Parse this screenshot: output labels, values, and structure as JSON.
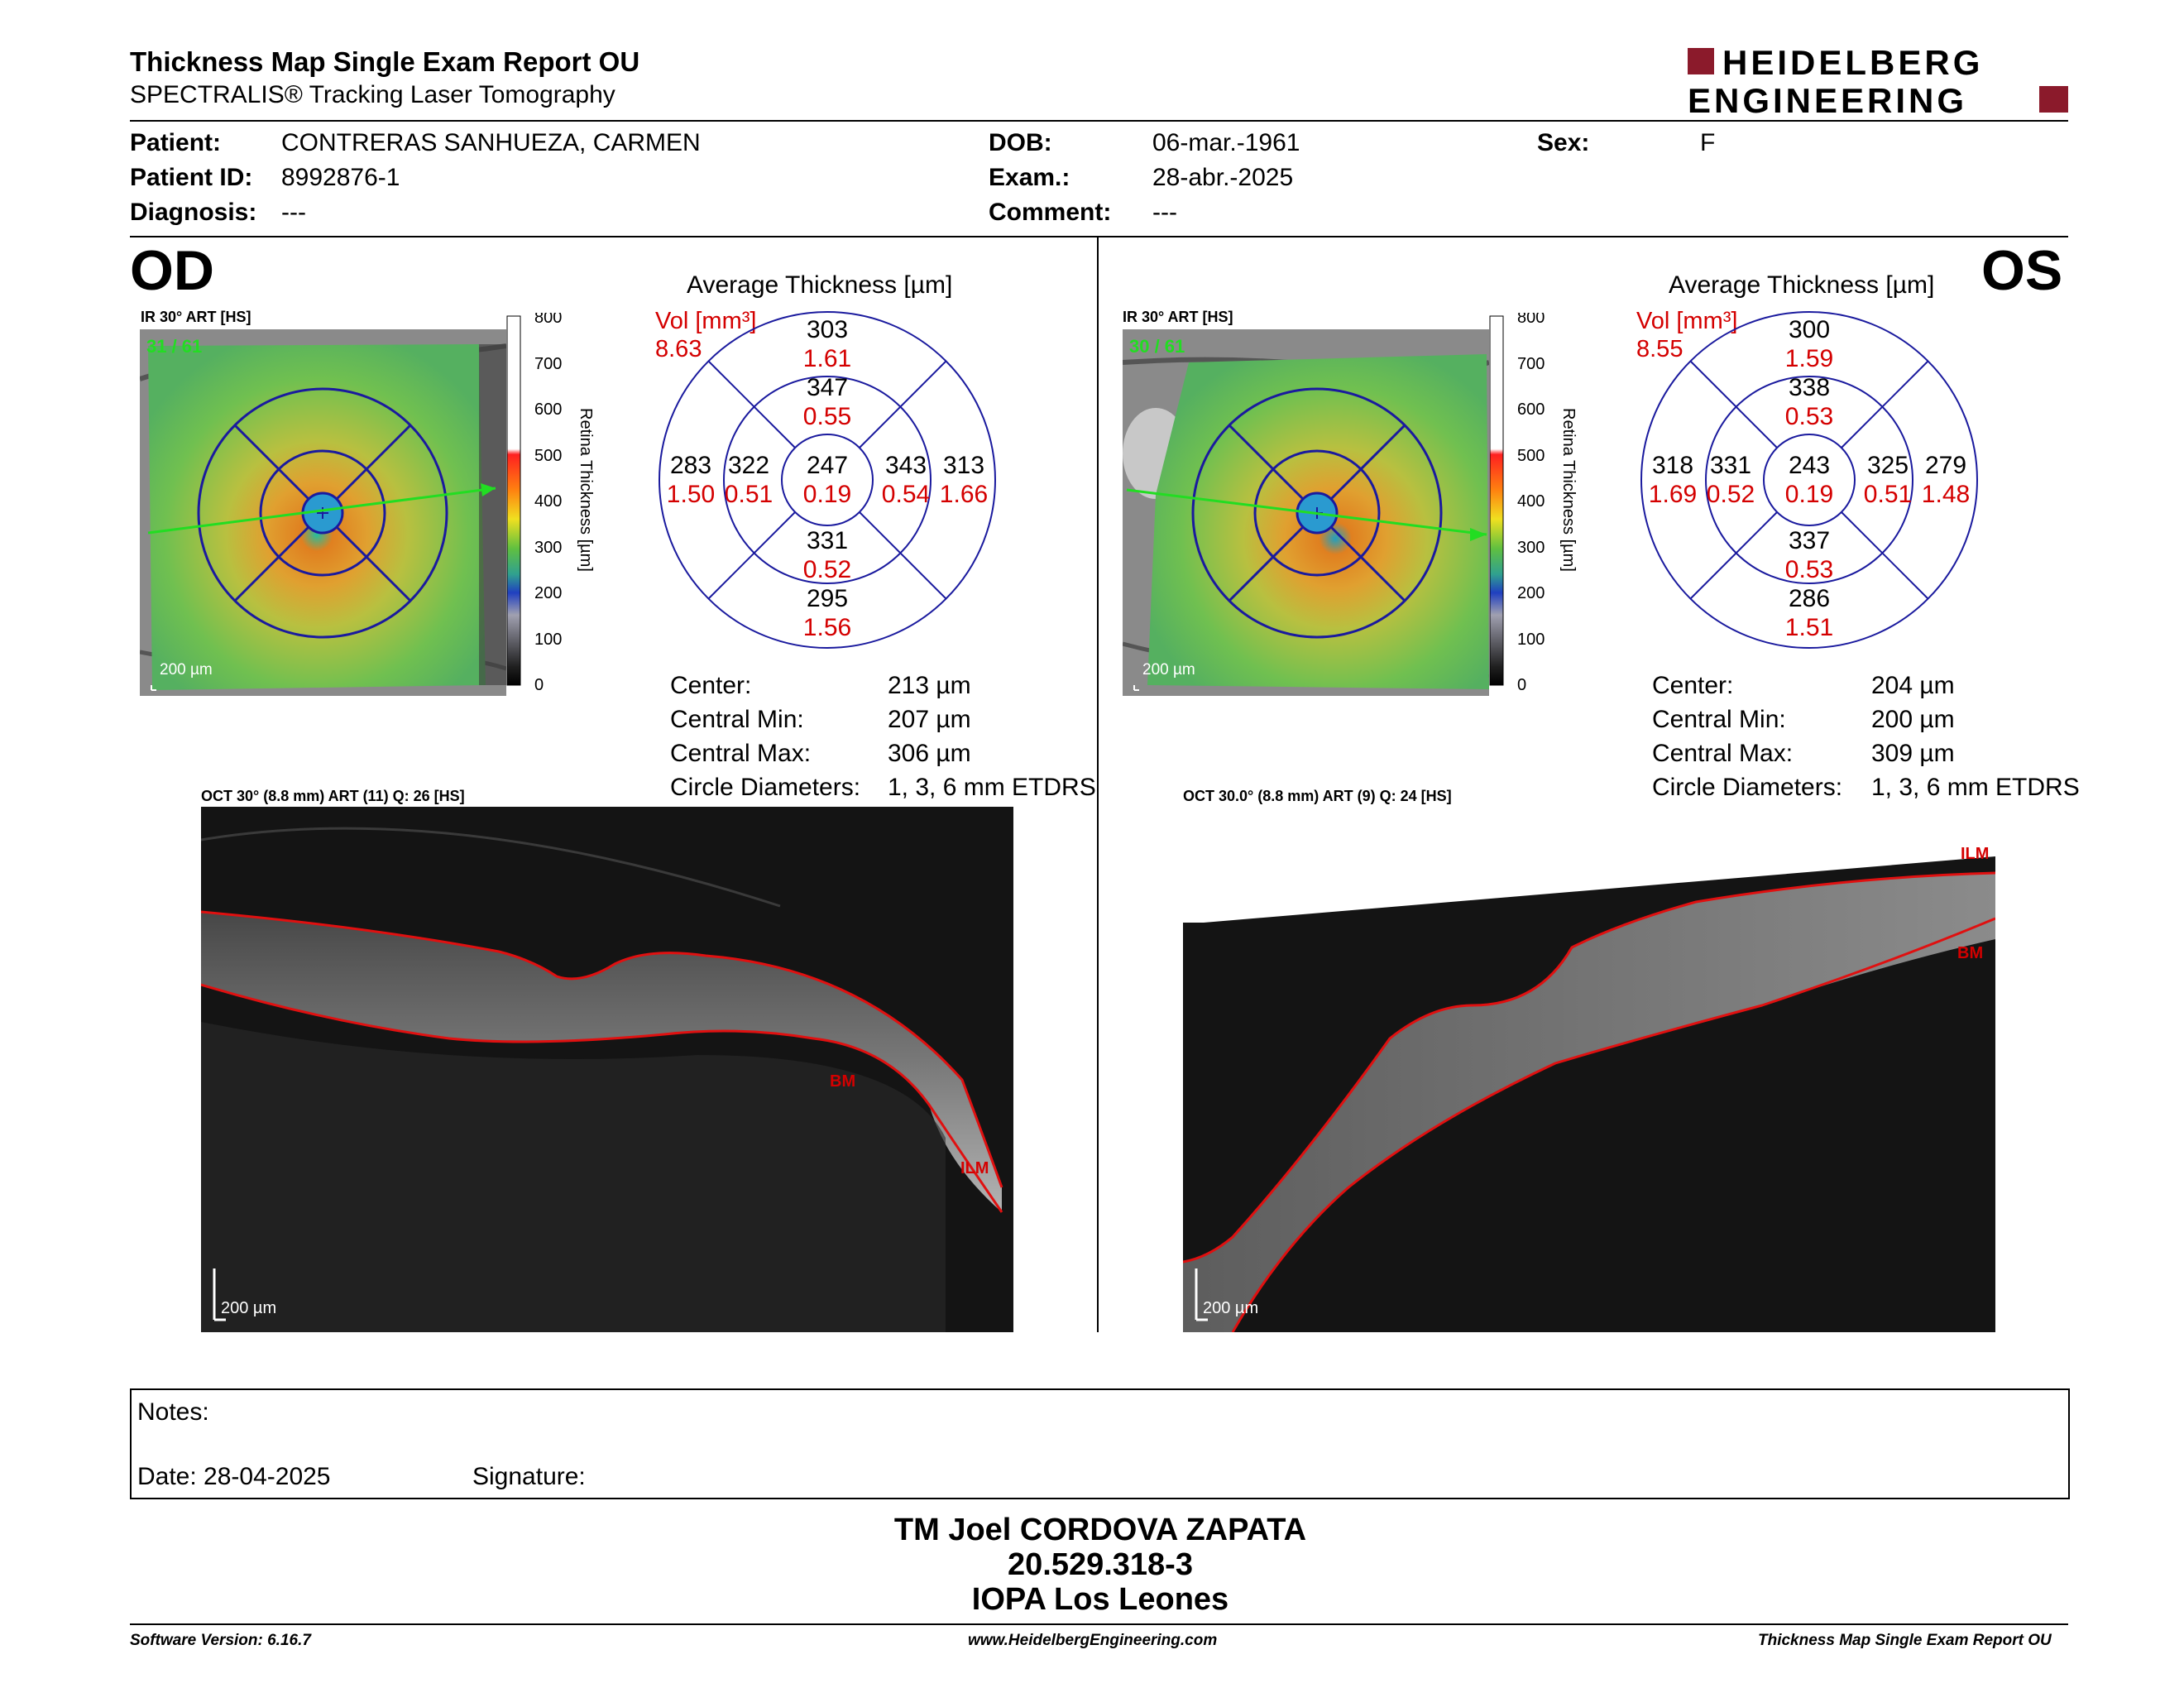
{
  "header": {
    "title": "Thickness Map Single Exam Report OU",
    "subtitle": "SPECTRALIS® Tracking Laser Tomography",
    "logo_line1": "HEIDELBERG",
    "logo_line2": "ENGINEERING"
  },
  "patient": {
    "patient_label": "Patient:",
    "patient_value": "CONTRERAS SANHUEZA, CARMEN",
    "id_label": "Patient ID:",
    "id_value": "8992876-1",
    "diagnosis_label": "Diagnosis:",
    "diagnosis_value": "---",
    "dob_label": "DOB:",
    "dob_value": "06-mar.-1961",
    "exam_label": "Exam.:",
    "exam_value": "28-abr.-2025",
    "comment_label": "Comment:",
    "comment_value": "---",
    "sex_label": "Sex:",
    "sex_value": "F"
  },
  "scale": {
    "ticks": [
      "800",
      "700",
      "600",
      "500",
      "400",
      "300",
      "200",
      "100",
      "0"
    ],
    "label": "Retina Thickness [µm]"
  },
  "od": {
    "eye": "OD",
    "ir_caption": "IR 30° ART [HS]",
    "frame": "31 / 61",
    "scale_bar": "200 µm",
    "avg_title": "Average Thickness [µm]",
    "vol_label": "Vol [mm³]",
    "vol_value": "8.63",
    "grid": {
      "center": [
        "247",
        "0.19"
      ],
      "inner_sup": [
        "347",
        "0.55"
      ],
      "inner_inf": [
        "331",
        "0.52"
      ],
      "inner_left": [
        "322",
        "0.51"
      ],
      "inner_right": [
        "343",
        "0.54"
      ],
      "outer_sup": [
        "303",
        "1.61"
      ],
      "outer_inf": [
        "295",
        "1.56"
      ],
      "outer_left": [
        "283",
        "1.50"
      ],
      "outer_right": [
        "313",
        "1.66"
      ]
    },
    "stats": [
      {
        "label": "Center:",
        "value": "213 µm"
      },
      {
        "label": "Central Min:",
        "value": "207 µm"
      },
      {
        "label": "Central Max:",
        "value": "306 µm"
      },
      {
        "label": "Circle Diameters:",
        "value": "1, 3, 6 mm ETDRS"
      }
    ],
    "oct_caption": "OCT 30° (8.8 mm) ART (11) Q: 26 [HS]",
    "oct_scale": "200 µm",
    "ilm": "ILM",
    "bm": "BM"
  },
  "os": {
    "eye": "OS",
    "ir_caption": "IR 30° ART [HS]",
    "frame": "30 / 61",
    "scale_bar": "200 µm",
    "avg_title": "Average Thickness [µm]",
    "vol_label": "Vol [mm³]",
    "vol_value": "8.55",
    "grid": {
      "center": [
        "243",
        "0.19"
      ],
      "inner_sup": [
        "338",
        "0.53"
      ],
      "inner_inf": [
        "337",
        "0.53"
      ],
      "inner_left": [
        "331",
        "0.52"
      ],
      "inner_right": [
        "325",
        "0.51"
      ],
      "outer_sup": [
        "300",
        "1.59"
      ],
      "outer_inf": [
        "286",
        "1.51"
      ],
      "outer_left": [
        "318",
        "1.69"
      ],
      "outer_right": [
        "279",
        "1.48"
      ]
    },
    "stats": [
      {
        "label": "Center:",
        "value": "204 µm"
      },
      {
        "label": "Central Min:",
        "value": "200 µm"
      },
      {
        "label": "Central Max:",
        "value": "309 µm"
      },
      {
        "label": "Circle Diameters:",
        "value": "1, 3, 6 mm ETDRS"
      }
    ],
    "oct_caption": "OCT 30.0° (8.8 mm) ART (9) Q: 24 [HS]",
    "oct_scale": "200 µm",
    "ilm": "ILM",
    "bm": "BM"
  },
  "notes": {
    "notes_label": "Notes:",
    "date_label": "Date: 28-04-2025",
    "signature_label": "Signature:"
  },
  "signer": {
    "name": "TM Joel CORDOVA ZAPATA",
    "rut": "20.529.318-3",
    "org": "IOPA Los Leones"
  },
  "footer": {
    "software": "Software Version: 6.16.7",
    "url": "www.HeidelbergEngineering.com",
    "report": "Thickness Map Single Exam Report OU"
  },
  "colors": {
    "grid_blue": "#1a1a9e",
    "red_text": "#d40000",
    "logo_red": "#8b1a2b",
    "green": "#22dd22"
  }
}
